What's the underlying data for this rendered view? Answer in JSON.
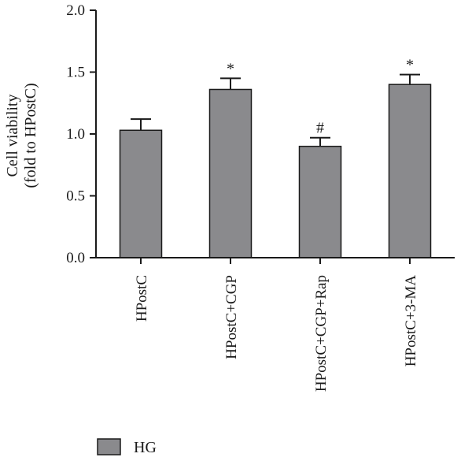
{
  "chart_data": {
    "type": "bar",
    "categories": [
      "HPostC",
      "HPostC+CGP",
      "HPostC+CGP+Rap",
      "HPostC+3-MA"
    ],
    "series": [
      {
        "name": "HG",
        "values": [
          1.03,
          1.36,
          0.9,
          1.4
        ],
        "errors": [
          0.09,
          0.09,
          0.07,
          0.08
        ],
        "annotations": [
          "",
          "*",
          "#",
          "*"
        ]
      }
    ],
    "ylabel_lines": [
      "Cell viability",
      "(fold to HPostC)"
    ],
    "xlabel": "",
    "ylim": [
      0,
      2.0
    ],
    "yticks": [
      "0.0",
      "0.5",
      "1.0",
      "1.5",
      "2.0"
    ],
    "grid": false,
    "legend_position": "bottom-left",
    "colors": {
      "bar": "#8a8a8d",
      "axis": "#1a1a1a"
    }
  }
}
